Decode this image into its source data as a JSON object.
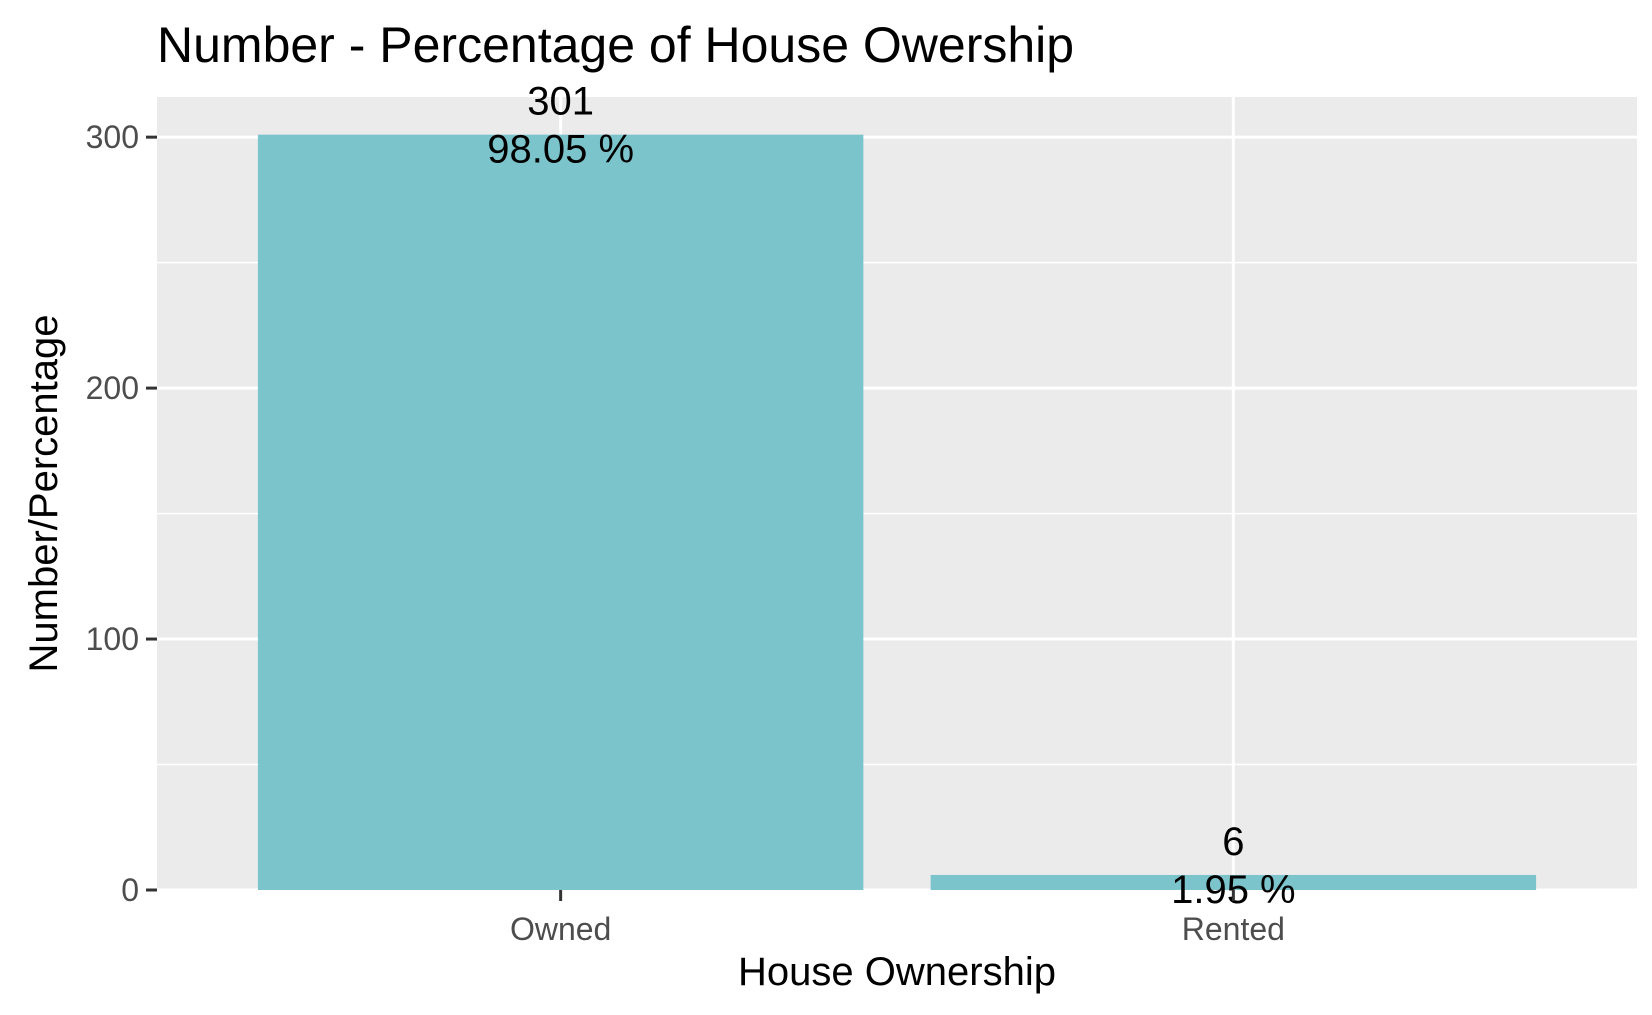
{
  "chart_data": {
    "type": "bar",
    "title": "Number - Percentage of House Owership",
    "xlabel": "House Ownership",
    "ylabel": "Number/Percentage",
    "categories": [
      "Owned",
      "Rented"
    ],
    "values": [
      301,
      6
    ],
    "value_labels": [
      "301",
      "6"
    ],
    "percent_labels": [
      "98.05 %",
      "1.95 %"
    ],
    "ylim": [
      0,
      316
    ],
    "yticks": [
      0,
      100,
      200,
      300
    ],
    "ytick_labels": [
      "0",
      "100",
      "200",
      "300"
    ],
    "grid": true,
    "legend": "none",
    "colors": {
      "bar": "#7cc4cc",
      "panel": "#ebebeb",
      "grid": "#ffffff",
      "tick": "#333333"
    }
  }
}
